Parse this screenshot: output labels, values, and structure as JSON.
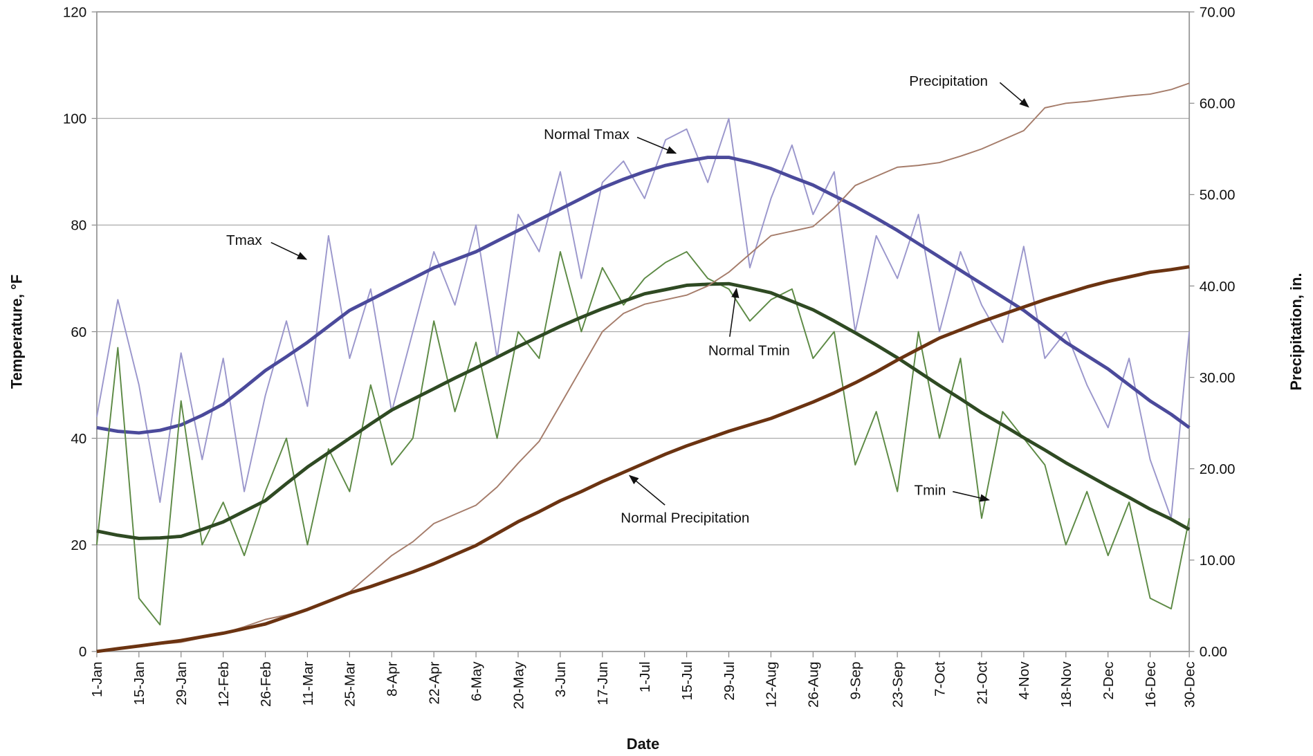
{
  "chart_data": {
    "type": "line",
    "xlabel": "Date",
    "ylabel": "Temperature, °F",
    "y2label": "Precipitation, in.",
    "grid": true,
    "xlim": [
      1,
      364
    ],
    "ylim": [
      0,
      120
    ],
    "y2lim": [
      0,
      70
    ],
    "yticks": [
      0,
      20,
      40,
      60,
      80,
      100,
      120
    ],
    "y2ticks": [
      {
        "value": 0,
        "label": "0.00"
      },
      {
        "value": 10,
        "label": "10.00"
      },
      {
        "value": 20,
        "label": "20.00"
      },
      {
        "value": 30,
        "label": "30.00"
      },
      {
        "value": 40,
        "label": "40.00"
      },
      {
        "value": 50,
        "label": "50.00"
      },
      {
        "value": 60,
        "label": "60.00"
      },
      {
        "value": 70,
        "label": "70.00"
      }
    ],
    "xticks": [
      {
        "value": 1,
        "label": "1-Jan"
      },
      {
        "value": 15,
        "label": "15-Jan"
      },
      {
        "value": 29,
        "label": "29-Jan"
      },
      {
        "value": 43,
        "label": "12-Feb"
      },
      {
        "value": 57,
        "label": "26-Feb"
      },
      {
        "value": 71,
        "label": "11-Mar"
      },
      {
        "value": 85,
        "label": "25-Mar"
      },
      {
        "value": 99,
        "label": "8-Apr"
      },
      {
        "value": 113,
        "label": "22-Apr"
      },
      {
        "value": 127,
        "label": "6-May"
      },
      {
        "value": 141,
        "label": "20-May"
      },
      {
        "value": 155,
        "label": "3-Jun"
      },
      {
        "value": 169,
        "label": "17-Jun"
      },
      {
        "value": 183,
        "label": "1-Jul"
      },
      {
        "value": 197,
        "label": "15-Jul"
      },
      {
        "value": 211,
        "label": "29-Jul"
      },
      {
        "value": 225,
        "label": "12-Aug"
      },
      {
        "value": 239,
        "label": "26-Aug"
      },
      {
        "value": 253,
        "label": "9-Sep"
      },
      {
        "value": 267,
        "label": "23-Sep"
      },
      {
        "value": 281,
        "label": "7-Oct"
      },
      {
        "value": 295,
        "label": "21-Oct"
      },
      {
        "value": 309,
        "label": "4-Nov"
      },
      {
        "value": 323,
        "label": "18-Nov"
      },
      {
        "value": 337,
        "label": "2-Dec"
      },
      {
        "value": 351,
        "label": "16-Dec"
      },
      {
        "value": 364,
        "label": "30-Dec"
      }
    ],
    "x": [
      1,
      8,
      15,
      22,
      29,
      36,
      43,
      50,
      57,
      64,
      71,
      78,
      85,
      92,
      99,
      106,
      113,
      120,
      127,
      134,
      141,
      148,
      155,
      162,
      169,
      176,
      183,
      190,
      197,
      204,
      211,
      218,
      225,
      232,
      239,
      246,
      253,
      260,
      267,
      274,
      281,
      288,
      295,
      302,
      309,
      316,
      323,
      330,
      337,
      344,
      351,
      358,
      364
    ],
    "series": [
      {
        "name": "Tmax",
        "color": "#9b97cc",
        "width": 1.6,
        "values": [
          44,
          66,
          50,
          28,
          56,
          36,
          55,
          30,
          48,
          62,
          46,
          78,
          55,
          68,
          45,
          60,
          75,
          65,
          80,
          55,
          82,
          75,
          90,
          70,
          88,
          92,
          85,
          96,
          98,
          88,
          100,
          72,
          85,
          95,
          82,
          90,
          60,
          78,
          70,
          82,
          60,
          75,
          65,
          58,
          76,
          55,
          60,
          50,
          42,
          55,
          36,
          25,
          60
        ]
      },
      {
        "name": "Normal Tmax",
        "color": "#4b4a9b",
        "width": 4,
        "values": [
          42,
          41.3,
          41,
          41.5,
          42.5,
          44.3,
          46.4,
          49.5,
          52.7,
          55.3,
          58,
          61,
          64,
          66,
          68,
          70,
          72,
          73.5,
          75,
          77,
          79,
          81,
          83,
          85,
          87,
          88.6,
          90,
          91.2,
          92,
          92.7,
          92.7,
          91.8,
          90.6,
          89,
          87.5,
          85.5,
          83.5,
          81.3,
          79,
          76.5,
          74,
          71.5,
          69,
          66.5,
          64,
          61,
          58,
          55.5,
          53,
          50,
          47,
          44.5,
          42
        ]
      },
      {
        "name": "Tmin",
        "color": "#5d8a45",
        "width": 1.6,
        "values": [
          20,
          57,
          10,
          5,
          47,
          20,
          28,
          18,
          30,
          40,
          20,
          38,
          30,
          50,
          35,
          40,
          62,
          45,
          58,
          40,
          60,
          55,
          75,
          60,
          72,
          65,
          70,
          73,
          75,
          70,
          68,
          62,
          66,
          68,
          55,
          60,
          35,
          45,
          30,
          60,
          40,
          55,
          25,
          45,
          40,
          35,
          20,
          30,
          18,
          28,
          10,
          8,
          25
        ]
      },
      {
        "name": "Normal Tmin",
        "color": "#2f4a23",
        "width": 4,
        "values": [
          22.6,
          21.8,
          21.2,
          21.3,
          21.6,
          22.9,
          24.3,
          26.3,
          28.3,
          31.5,
          34.6,
          37.3,
          40,
          42.7,
          45.3,
          47.3,
          49.3,
          51.3,
          53.2,
          55.2,
          57.2,
          59.1,
          61,
          62.7,
          64.3,
          65.7,
          67.1,
          67.9,
          68.7,
          68.9,
          69,
          68.2,
          67.3,
          65.7,
          64.1,
          62,
          59.8,
          57.5,
          55.1,
          52.5,
          49.9,
          47.4,
          44.8,
          42.5,
          40.1,
          37.8,
          35.4,
          33.2,
          31,
          28.9,
          26.7,
          24.8,
          22.9
        ]
      },
      {
        "name": "Precipitation",
        "color": "#a57c6a",
        "width": 1.6,
        "axis": "y2",
        "values": [
          0,
          0.3,
          0.5,
          0.8,
          1,
          1.5,
          2,
          2.7,
          3.5,
          4,
          4.6,
          5.5,
          6.5,
          8.5,
          10.5,
          12,
          14,
          15,
          16,
          18,
          20.6,
          23,
          27,
          31,
          35,
          37,
          38,
          38.5,
          39,
          40,
          41.5,
          43.5,
          45.5,
          46,
          46.5,
          48.5,
          51,
          52,
          53,
          53.2,
          53.5,
          54.2,
          55,
          56,
          57,
          59.5,
          60,
          60.2,
          60.5,
          60.8,
          61,
          61.5,
          62.2
        ]
      },
      {
        "name": "Normal Precipitation",
        "color": "#6b3311",
        "width": 4,
        "axis": "y2",
        "values": [
          0,
          0.3,
          0.6,
          0.9,
          1.2,
          1.6,
          2,
          2.5,
          3,
          3.8,
          4.6,
          5.5,
          6.4,
          7.1,
          7.9,
          8.7,
          9.6,
          10.6,
          11.6,
          12.9,
          14.2,
          15.3,
          16.5,
          17.5,
          18.6,
          19.6,
          20.6,
          21.6,
          22.5,
          23.3,
          24.1,
          24.8,
          25.5,
          26.4,
          27.3,
          28.3,
          29.4,
          30.6,
          31.9,
          33.1,
          34.3,
          35.2,
          36.1,
          36.9,
          37.7,
          38.5,
          39.2,
          39.9,
          40.5,
          41,
          41.5,
          41.8,
          42.1
        ]
      }
    ]
  }
}
